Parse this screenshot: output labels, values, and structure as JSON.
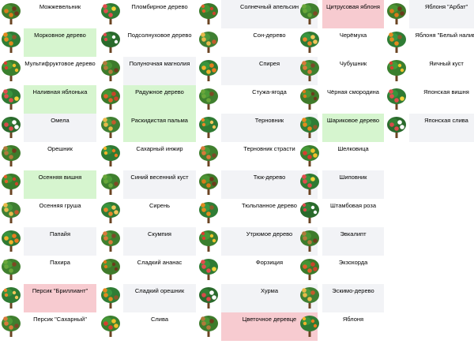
{
  "colors": {
    "green": "#d6f5cf",
    "pink": "#f7cbd0",
    "gray": "#f2f3f6"
  },
  "columns": [
    {
      "items": [
        {
          "label": "Можжевельник",
          "bg": "none",
          "icon": "juniper-icon"
        },
        {
          "label": "Морковное дерево",
          "bg": "green",
          "icon": "carrot-tree-icon"
        },
        {
          "label": "Мультифруктовое дерево",
          "bg": "none",
          "icon": "multifruit-tree-icon"
        },
        {
          "label": "Наливная яблонька",
          "bg": "green",
          "icon": "apple-tree-icon"
        },
        {
          "label": "Омела",
          "bg": "gray",
          "icon": "mistletoe-icon"
        },
        {
          "label": "Орешник",
          "bg": "none",
          "icon": "hazel-icon"
        },
        {
          "label": "Осенняя вишня",
          "bg": "green",
          "icon": "autumn-cherry-icon"
        },
        {
          "label": "Осенняя груша",
          "bg": "none",
          "icon": "autumn-pear-icon"
        },
        {
          "label": "Папайя",
          "bg": "gray",
          "icon": "papaya-icon"
        },
        {
          "label": "Пахира",
          "bg": "none",
          "icon": "pachira-icon"
        },
        {
          "label": "Персик \"Бриллиант\"",
          "bg": "pink",
          "icon": "peach-diamond-icon"
        },
        {
          "label": "Персик \"Сахарный\"",
          "bg": "none",
          "icon": "peach-sugar-icon"
        }
      ]
    },
    {
      "items": [
        {
          "label": "Пломбирное дерево",
          "bg": "none",
          "icon": "icecream-tree-icon"
        },
        {
          "label": "Подсолнуховое дерево",
          "bg": "none",
          "icon": "sunflower-tree-icon"
        },
        {
          "label": "Полуночная магнолия",
          "bg": "gray",
          "icon": "midnight-magnolia-icon"
        },
        {
          "label": "Радужное дерево",
          "bg": "green",
          "icon": "rainbow-tree-icon"
        },
        {
          "label": "Раскидистая пальма",
          "bg": "green",
          "icon": "palm-icon"
        },
        {
          "label": "Сахарный инжир",
          "bg": "none",
          "icon": "sugar-fig-icon"
        },
        {
          "label": "Синий весенний куст",
          "bg": "gray",
          "icon": "blue-spring-bush-icon"
        },
        {
          "label": "Сирень",
          "bg": "none",
          "icon": "lilac-icon"
        },
        {
          "label": "Скумпия",
          "bg": "gray",
          "icon": "smoke-tree-icon"
        },
        {
          "label": "Сладкий ананас",
          "bg": "none",
          "icon": "sweet-pineapple-icon"
        },
        {
          "label": "Сладкий орешник",
          "bg": "gray",
          "icon": "sweet-hazel-icon"
        },
        {
          "label": "Слива",
          "bg": "none",
          "icon": "plum-icon"
        }
      ]
    },
    {
      "items": [
        {
          "label": "Солнечный апельсин",
          "bg": "gray",
          "icon": "sun-orange-icon"
        },
        {
          "label": "Сон-дерево",
          "bg": "none",
          "icon": "dream-tree-icon"
        },
        {
          "label": "Спирея",
          "bg": "gray",
          "icon": "spirea-icon"
        },
        {
          "label": "Стужа-ягода",
          "bg": "none",
          "icon": "frost-berry-icon"
        },
        {
          "label": "Терновник",
          "bg": "gray",
          "icon": "blackthorn-icon"
        },
        {
          "label": "Терновник страсти",
          "bg": "none",
          "icon": "passion-blackthorn-icon"
        },
        {
          "label": "Тюк-дерево",
          "bg": "gray",
          "icon": "bale-tree-icon"
        },
        {
          "label": "Тюльпанное дерево",
          "bg": "none",
          "icon": "tulip-tree-icon"
        },
        {
          "label": "Утрюмое дерево",
          "bg": "gray",
          "icon": "gloomy-tree-icon"
        },
        {
          "label": "Форзиция",
          "bg": "none",
          "icon": "forsythia-icon"
        },
        {
          "label": "Хурма",
          "bg": "gray",
          "icon": "persimmon-icon"
        },
        {
          "label": "Цветочное деревце",
          "bg": "pink",
          "icon": "flower-tree-icon"
        }
      ]
    },
    {
      "items": [
        {
          "label": "Цитрусовая яблоня",
          "bg": "pink",
          "icon": "citrus-apple-icon"
        },
        {
          "label": "Черёмуха",
          "bg": "none",
          "icon": "bird-cherry-icon"
        },
        {
          "label": "Чубушник",
          "bg": "none",
          "icon": "mock-orange-icon"
        },
        {
          "label": "Чёрная смородина",
          "bg": "none",
          "icon": "blackcurrant-icon"
        },
        {
          "label": "Шариковое дерево",
          "bg": "green",
          "icon": "ball-tree-icon"
        },
        {
          "label": "Шелковица",
          "bg": "none",
          "icon": "mulberry-icon"
        },
        {
          "label": "Шиповник",
          "bg": "gray",
          "icon": "rosehip-icon"
        },
        {
          "label": "Штамбовая роза",
          "bg": "none",
          "icon": "standard-rose-icon"
        },
        {
          "label": "Эвкалипт",
          "bg": "gray",
          "icon": "eucalyptus-icon"
        },
        {
          "label": "Экзохорда",
          "bg": "none",
          "icon": "exochorda-icon"
        },
        {
          "label": "Эскимо-дерево",
          "bg": "gray",
          "icon": "eskimo-tree-icon"
        },
        {
          "label": "Яблоня",
          "bg": "none",
          "icon": "apple-icon"
        }
      ]
    },
    {
      "items": [
        {
          "label": "Яблоня \"Арбат\"",
          "bg": "gray",
          "icon": "apple-arbat-icon"
        },
        {
          "label": "Яблоня \"Белый налив\"",
          "bg": "none",
          "icon": "apple-white-icon"
        },
        {
          "label": "Яичный куст",
          "bg": "none",
          "icon": "egg-bush-icon"
        },
        {
          "label": "Японская вишня",
          "bg": "none",
          "icon": "japanese-cherry-icon"
        },
        {
          "label": "Японская слива",
          "bg": "gray",
          "icon": "japanese-plum-icon"
        }
      ]
    }
  ]
}
